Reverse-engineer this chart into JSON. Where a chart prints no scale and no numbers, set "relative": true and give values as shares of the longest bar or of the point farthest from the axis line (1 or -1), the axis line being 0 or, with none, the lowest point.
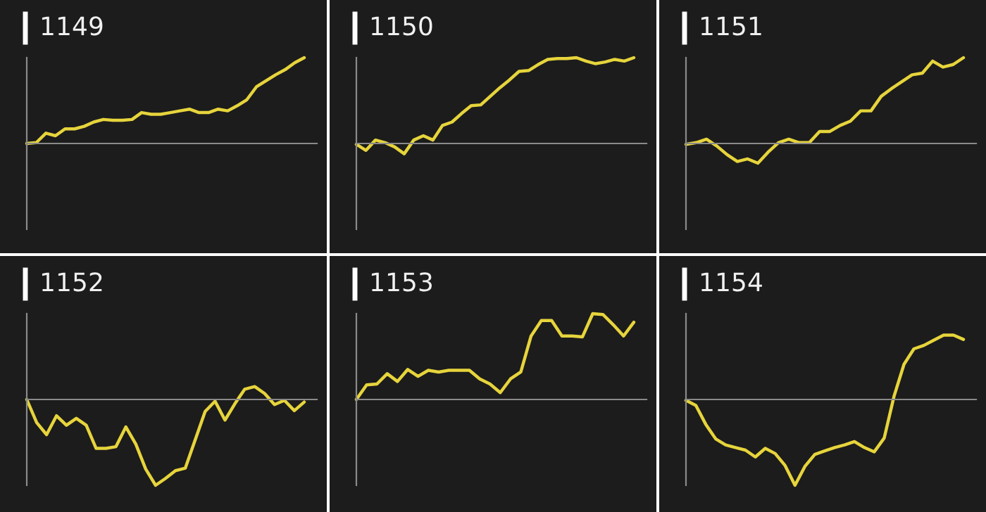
{
  "chart_data": [
    {
      "type": "line",
      "title": "1149",
      "relative": true,
      "color": "#e6d43c",
      "categories": [
        null,
        null,
        null,
        null,
        null,
        null,
        null,
        null,
        null,
        null,
        null,
        null,
        null,
        null,
        null,
        null,
        null,
        null,
        null,
        null,
        null,
        null,
        null,
        null,
        null,
        null,
        null,
        null,
        null,
        null
      ],
      "values": [
        0,
        0.01,
        0.12,
        0.09,
        0.17,
        0.17,
        0.2,
        0.25,
        0.28,
        0.27,
        0.27,
        0.28,
        0.36,
        0.34,
        0.34,
        0.36,
        0.38,
        0.4,
        0.36,
        0.36,
        0.4,
        0.38,
        0.44,
        0.51,
        0.66,
        0.73,
        0.8,
        0.86,
        0.94,
        1
      ]
    },
    {
      "type": "line",
      "title": "1150",
      "relative": true,
      "color": "#e6d43c",
      "categories": [
        null,
        null,
        null,
        null,
        null,
        null,
        null,
        null,
        null,
        null,
        null,
        null,
        null,
        null,
        null,
        null,
        null,
        null,
        null,
        null,
        null,
        null,
        null,
        null,
        null,
        null,
        null,
        null,
        null,
        null
      ],
      "values": [
        -0.01,
        -0.08,
        0.04,
        0.01,
        -0.04,
        -0.12,
        0.04,
        0.09,
        0.04,
        0.21,
        0.25,
        0.35,
        0.44,
        0.45,
        0.55,
        0.65,
        0.74,
        0.84,
        0.85,
        0.92,
        0.98,
        0.99,
        0.99,
        1,
        0.96,
        0.93,
        0.95,
        0.98,
        0.96,
        1
      ]
    },
    {
      "type": "line",
      "title": "1151",
      "relative": true,
      "color": "#e6d43c",
      "categories": [
        null,
        null,
        null,
        null,
        null,
        null,
        null,
        null,
        null,
        null,
        null,
        null,
        null,
        null,
        null,
        null,
        null,
        null,
        null,
        null,
        null,
        null,
        null,
        null,
        null,
        null,
        null,
        null
      ],
      "values": [
        -0.01,
        0.01,
        0.05,
        -0.03,
        -0.13,
        -0.21,
        -0.18,
        -0.23,
        -0.1,
        0.01,
        0.05,
        0.01,
        0.01,
        0.14,
        0.14,
        0.21,
        0.26,
        0.38,
        0.38,
        0.55,
        0.64,
        0.72,
        0.8,
        0.82,
        0.96,
        0.89,
        0.92,
        1
      ]
    },
    {
      "type": "line",
      "title": "1152",
      "relative": true,
      "color": "#e6d43c",
      "categories": [
        null,
        null,
        null,
        null,
        null,
        null,
        null,
        null,
        null,
        null,
        null,
        null,
        null,
        null,
        null,
        null,
        null,
        null,
        null,
        null,
        null,
        null,
        null,
        null,
        null,
        null,
        null,
        null,
        null
      ],
      "values": [
        0,
        -0.27,
        -0.41,
        -0.19,
        -0.3,
        -0.22,
        -0.3,
        -0.57,
        -0.57,
        -0.55,
        -0.32,
        -0.52,
        -0.81,
        -1,
        -0.92,
        -0.83,
        -0.8,
        -0.47,
        -0.14,
        -0.02,
        -0.24,
        -0.05,
        0.12,
        0.15,
        0.07,
        -0.06,
        -0.01,
        -0.13,
        -0.03
      ]
    },
    {
      "type": "line",
      "title": "1153",
      "relative": true,
      "color": "#e6d43c",
      "categories": [
        null,
        null,
        null,
        null,
        null,
        null,
        null,
        null,
        null,
        null,
        null,
        null,
        null,
        null,
        null,
        null,
        null,
        null,
        null,
        null,
        null,
        null,
        null,
        null,
        null,
        null,
        null,
        null
      ],
      "values": [
        0,
        0.17,
        0.18,
        0.3,
        0.21,
        0.35,
        0.27,
        0.34,
        0.32,
        0.34,
        0.34,
        0.34,
        0.24,
        0.18,
        0.08,
        0.24,
        0.32,
        0.74,
        0.92,
        0.92,
        0.74,
        0.74,
        0.73,
        1,
        0.99,
        0.87,
        0.74,
        0.9
      ]
    },
    {
      "type": "line",
      "title": "1154",
      "relative": true,
      "color": "#e6d43c",
      "categories": [
        null,
        null,
        null,
        null,
        null,
        null,
        null,
        null,
        null,
        null,
        null,
        null,
        null,
        null,
        null,
        null,
        null,
        null,
        null,
        null,
        null,
        null,
        null,
        null,
        null,
        null,
        null,
        null,
        null
      ],
      "values": [
        -0.01,
        -0.07,
        -0.29,
        -0.46,
        -0.53,
        -0.56,
        -0.59,
        -0.67,
        -0.57,
        -0.63,
        -0.77,
        -1,
        -0.78,
        -0.64,
        -0.6,
        -0.56,
        -0.53,
        -0.49,
        -0.56,
        -0.61,
        -0.45,
        0.04,
        0.41,
        0.59,
        0.63,
        0.69,
        0.75,
        0.75,
        0.7
      ]
    }
  ]
}
